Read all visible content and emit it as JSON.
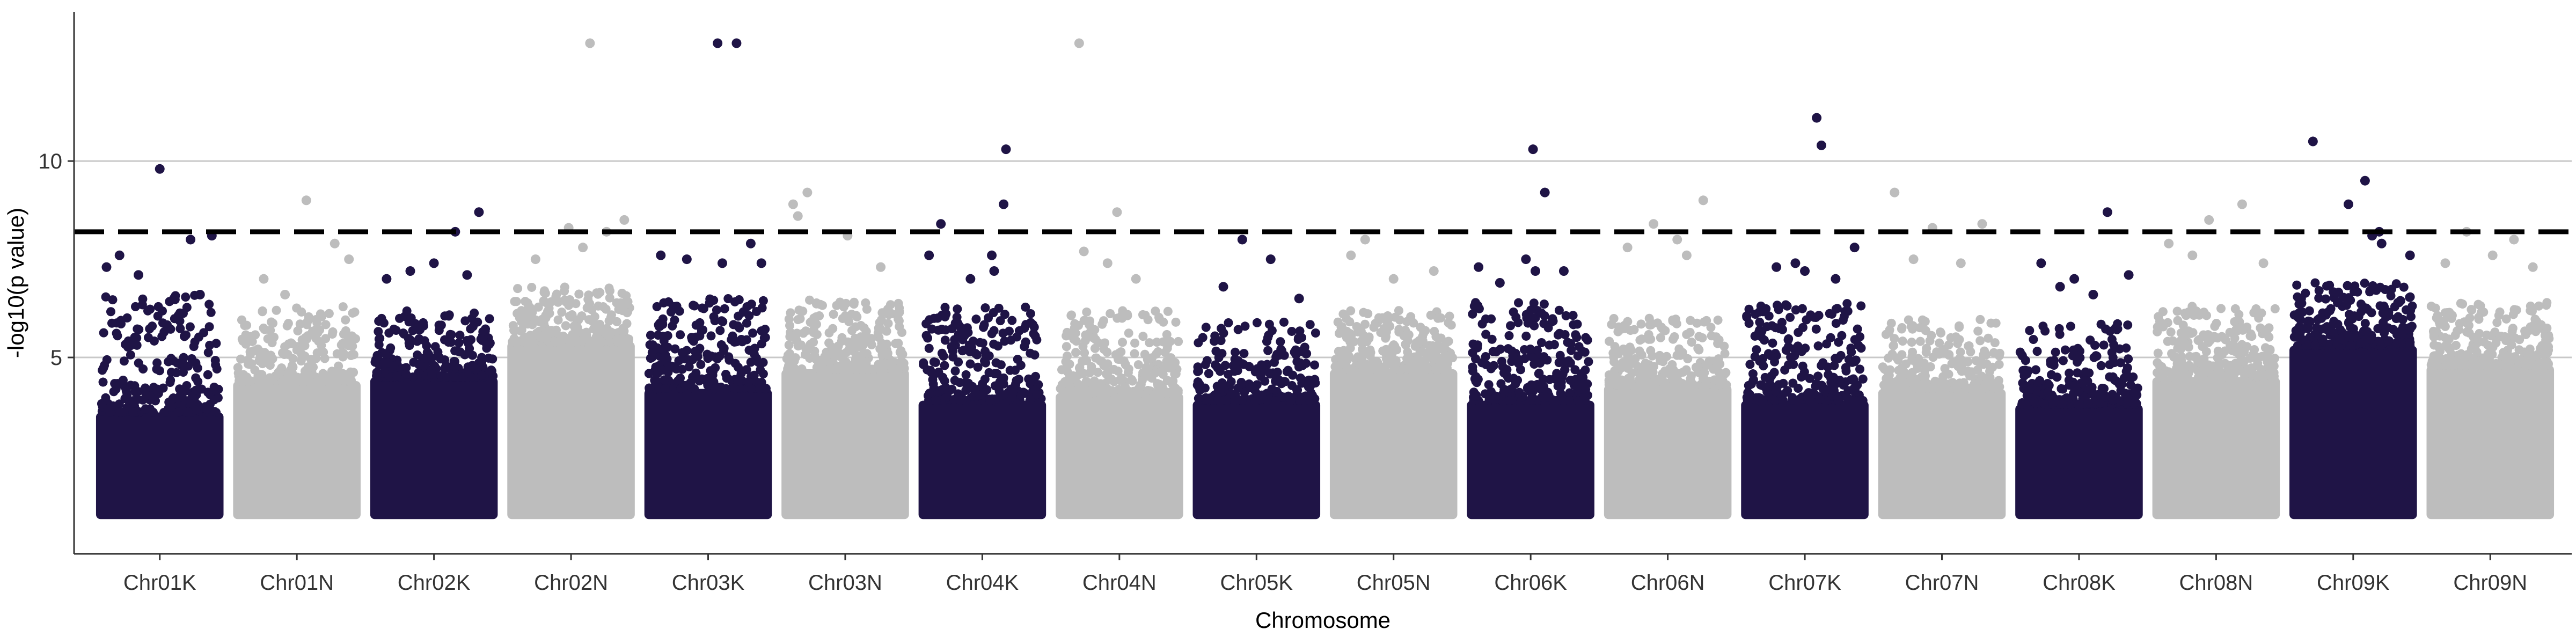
{
  "chart_data": {
    "type": "scatter",
    "subtype": "manhattan",
    "title": "",
    "xlabel": "Chromosome",
    "ylabel": "-log10(p value)",
    "ylim": [
      0,
      13.8
    ],
    "yticks": [
      5,
      10
    ],
    "grid": "horizontal",
    "threshold": 8.2,
    "colors": {
      "odd": "#1f1446",
      "even": "#bdbdbd",
      "threshold": "#000000",
      "grid": "#c8c8c8",
      "axis": "#333333"
    },
    "chromosomes": [
      {
        "name": "Chr01K",
        "min": 1.0,
        "dense_top": 3.6,
        "scatter_top": 6.6,
        "peaks": [
          [
            0.5,
            9.8
          ],
          [
            0.76,
            8.0
          ],
          [
            0.94,
            8.1
          ],
          [
            0.16,
            7.6
          ],
          [
            0.32,
            7.1
          ],
          [
            0.62,
            6.5
          ],
          [
            0.84,
            6.6
          ],
          [
            0.05,
            7.3
          ]
        ]
      },
      {
        "name": "Chr01N",
        "min": 1.0,
        "dense_top": 4.4,
        "scatter_top": 6.3,
        "peaks": [
          [
            0.58,
            9.0
          ],
          [
            0.22,
            7.0
          ],
          [
            0.82,
            7.9
          ],
          [
            0.4,
            6.6
          ],
          [
            0.94,
            7.5
          ]
        ]
      },
      {
        "name": "Chr02K",
        "min": 1.0,
        "dense_top": 4.5,
        "scatter_top": 6.2,
        "peaks": [
          [
            0.68,
            8.2
          ],
          [
            0.88,
            8.7
          ],
          [
            0.1,
            7.0
          ],
          [
            0.3,
            7.2
          ],
          [
            0.5,
            7.4
          ],
          [
            0.78,
            7.1
          ]
        ]
      },
      {
        "name": "Chr02N",
        "min": 1.0,
        "dense_top": 5.4,
        "scatter_top": 6.8,
        "peaks": [
          [
            0.66,
            13.0
          ],
          [
            0.95,
            8.5
          ],
          [
            0.48,
            8.3
          ],
          [
            0.8,
            8.2
          ],
          [
            0.2,
            7.5
          ],
          [
            0.6,
            7.8
          ]
        ]
      },
      {
        "name": "Chr03K",
        "min": 1.0,
        "dense_top": 4.2,
        "scatter_top": 6.5,
        "peaks": [
          [
            0.58,
            13.0
          ],
          [
            0.74,
            13.0
          ],
          [
            0.1,
            7.6
          ],
          [
            0.32,
            7.5
          ],
          [
            0.62,
            7.4
          ],
          [
            0.86,
            7.9
          ],
          [
            0.95,
            7.4
          ]
        ]
      },
      {
        "name": "Chr03N",
        "min": 1.0,
        "dense_top": 4.7,
        "scatter_top": 6.5,
        "peaks": [
          [
            0.18,
            9.2
          ],
          [
            0.06,
            8.9
          ],
          [
            0.1,
            8.6
          ],
          [
            0.52,
            8.1
          ],
          [
            0.8,
            7.3
          ]
        ]
      },
      {
        "name": "Chr04K",
        "min": 1.0,
        "dense_top": 3.9,
        "scatter_top": 6.3,
        "peaks": [
          [
            0.7,
            10.3
          ],
          [
            0.68,
            8.9
          ],
          [
            0.15,
            8.4
          ],
          [
            0.05,
            7.6
          ],
          [
            0.6,
            7.2
          ],
          [
            0.58,
            7.6
          ],
          [
            0.4,
            7.0
          ]
        ]
      },
      {
        "name": "Chr04N",
        "min": 1.0,
        "dense_top": 4.1,
        "scatter_top": 6.2,
        "peaks": [
          [
            0.16,
            13.0
          ],
          [
            0.48,
            8.7
          ],
          [
            0.2,
            7.7
          ],
          [
            0.4,
            7.4
          ],
          [
            0.64,
            7.0
          ]
        ]
      },
      {
        "name": "Chr05K",
        "min": 1.0,
        "dense_top": 3.9,
        "scatter_top": 5.9,
        "peaks": [
          [
            0.38,
            8.0
          ],
          [
            0.62,
            7.5
          ],
          [
            0.22,
            6.8
          ],
          [
            0.86,
            6.5
          ]
        ]
      },
      {
        "name": "Chr05N",
        "min": 1.0,
        "dense_top": 4.7,
        "scatter_top": 6.2,
        "peaks": [
          [
            0.26,
            8.0
          ],
          [
            0.14,
            7.6
          ],
          [
            0.5,
            7.0
          ],
          [
            0.84,
            7.2
          ]
        ]
      },
      {
        "name": "Chr06K",
        "min": 1.0,
        "dense_top": 3.9,
        "scatter_top": 6.4,
        "peaks": [
          [
            0.52,
            10.3
          ],
          [
            0.62,
            9.2
          ],
          [
            0.46,
            7.5
          ],
          [
            0.54,
            7.2
          ],
          [
            0.06,
            7.3
          ],
          [
            0.24,
            6.9
          ],
          [
            0.78,
            7.2
          ]
        ]
      },
      {
        "name": "Chr06N",
        "min": 1.0,
        "dense_top": 4.3,
        "scatter_top": 6.0,
        "peaks": [
          [
            0.38,
            8.4
          ],
          [
            0.8,
            9.0
          ],
          [
            0.16,
            7.8
          ],
          [
            0.58,
            8.0
          ],
          [
            0.66,
            7.6
          ]
        ]
      },
      {
        "name": "Chr07K",
        "min": 1.0,
        "dense_top": 3.9,
        "scatter_top": 6.4,
        "peaks": [
          [
            0.6,
            11.1
          ],
          [
            0.64,
            10.4
          ],
          [
            0.92,
            7.8
          ],
          [
            0.26,
            7.3
          ],
          [
            0.42,
            7.4
          ],
          [
            0.5,
            7.2
          ],
          [
            0.76,
            7.0
          ]
        ]
      },
      {
        "name": "Chr07N",
        "min": 1.0,
        "dense_top": 4.2,
        "scatter_top": 6.0,
        "peaks": [
          [
            0.1,
            9.2
          ],
          [
            0.42,
            8.3
          ],
          [
            0.84,
            8.4
          ],
          [
            0.26,
            7.5
          ],
          [
            0.66,
            7.4
          ]
        ]
      },
      {
        "name": "Chr08K",
        "min": 1.0,
        "dense_top": 3.8,
        "scatter_top": 5.9,
        "peaks": [
          [
            0.74,
            8.7
          ],
          [
            0.18,
            7.4
          ],
          [
            0.34,
            6.8
          ],
          [
            0.46,
            7.0
          ],
          [
            0.62,
            6.6
          ],
          [
            0.92,
            7.1
          ]
        ]
      },
      {
        "name": "Chr08N",
        "min": 1.0,
        "dense_top": 4.5,
        "scatter_top": 6.3,
        "peaks": [
          [
            0.44,
            8.5
          ],
          [
            0.72,
            8.9
          ],
          [
            0.1,
            7.9
          ],
          [
            0.3,
            7.6
          ],
          [
            0.9,
            7.4
          ]
        ]
      },
      {
        "name": "Chr09K",
        "min": 1.0,
        "dense_top": 5.3,
        "scatter_top": 6.9,
        "peaks": [
          [
            0.16,
            10.5
          ],
          [
            0.6,
            9.5
          ],
          [
            0.46,
            8.9
          ],
          [
            0.72,
            8.2
          ],
          [
            0.74,
            7.9
          ],
          [
            0.66,
            8.1
          ],
          [
            0.98,
            7.6
          ]
        ]
      },
      {
        "name": "Chr09N",
        "min": 1.0,
        "dense_top": 4.8,
        "scatter_top": 6.4,
        "peaks": [
          [
            0.3,
            8.2
          ],
          [
            0.7,
            8.0
          ],
          [
            0.52,
            7.6
          ],
          [
            0.12,
            7.4
          ],
          [
            0.86,
            7.3
          ]
        ]
      }
    ]
  }
}
